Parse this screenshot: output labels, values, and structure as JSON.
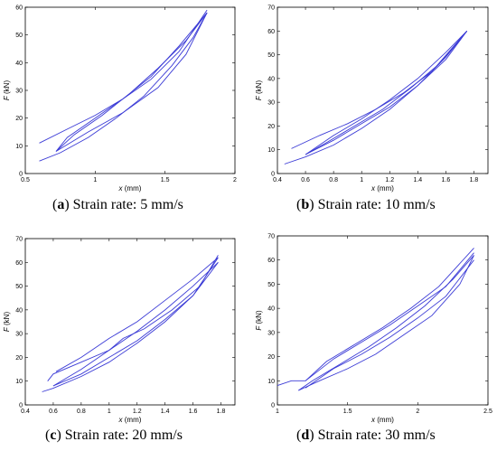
{
  "captions": [
    {
      "letter": "a",
      "text": "Strain rate: 5 mm/s"
    },
    {
      "letter": "b",
      "text": "Strain rate: 10 mm/s"
    },
    {
      "letter": "c",
      "text": "Strain rate: 20 mm/s"
    },
    {
      "letter": "d",
      "text": "Strain rate: 30 mm/s"
    }
  ],
  "axis_text": {
    "xlabel_var": "x",
    "xlabel_unit": " (mm)",
    "ylabel_var": "F",
    "ylabel_unit": " (kN)"
  },
  "colors": {
    "curve": "#3b3bd6"
  },
  "chart_data": [
    {
      "type": "line",
      "xlabel": "x (mm)",
      "ylabel": "F (kN)",
      "xlim": [
        0.5,
        2
      ],
      "ylim": [
        0,
        60
      ],
      "xticks": [
        "0.5",
        "1",
        "1.5",
        "2"
      ],
      "yticks": [
        "0",
        "10",
        "20",
        "30",
        "40",
        "50",
        "60"
      ],
      "grid": false,
      "series": [
        {
          "x": [
            0.6,
            0.75,
            0.95,
            1.15,
            1.35,
            1.55,
            1.7,
            1.8
          ],
          "y": [
            4.5,
            7.5,
            13,
            20,
            28,
            39,
            49,
            58
          ]
        },
        {
          "x": [
            1.8,
            1.65,
            1.45,
            1.25,
            1.05,
            0.85,
            0.72
          ],
          "y": [
            58,
            48,
            38,
            29,
            21,
            14,
            8
          ]
        },
        {
          "x": [
            0.72,
            0.95,
            1.2,
            1.45,
            1.65,
            1.8
          ],
          "y": [
            8,
            15,
            22,
            31,
            43,
            58
          ]
        },
        {
          "x": [
            1.8,
            1.6,
            1.4,
            1.2,
            1.0,
            0.8,
            0.72
          ],
          "y": [
            58,
            46,
            35,
            27,
            20,
            13,
            8
          ]
        },
        {
          "x": [
            0.6,
            0.8,
            1.0,
            1.2,
            1.4,
            1.6,
            1.8
          ],
          "y": [
            11,
            16,
            21,
            27,
            34,
            44,
            59
          ]
        }
      ]
    },
    {
      "type": "line",
      "xlabel": "x (mm)",
      "ylabel": "F (kN)",
      "xlim": [
        0.4,
        1.9
      ],
      "ylim": [
        0,
        70
      ],
      "xticks": [
        "0.4",
        "0.6",
        "0.8",
        "1",
        "1.2",
        "1.4",
        "1.6",
        "1.8"
      ],
      "yticks": [
        "0",
        "10",
        "20",
        "30",
        "40",
        "50",
        "60",
        "70"
      ],
      "grid": false,
      "series": [
        {
          "x": [
            0.45,
            0.6,
            0.8,
            1.0,
            1.2,
            1.4,
            1.6,
            1.75
          ],
          "y": [
            4,
            7,
            12,
            19,
            27,
            37,
            49,
            60
          ]
        },
        {
          "x": [
            1.75,
            1.6,
            1.4,
            1.2,
            1.0,
            0.8,
            0.6
          ],
          "y": [
            60,
            51,
            40,
            31,
            23,
            16,
            8
          ]
        },
        {
          "x": [
            0.6,
            0.8,
            1.0,
            1.2,
            1.4,
            1.6,
            1.75
          ],
          "y": [
            8,
            14,
            21,
            28,
            37,
            48,
            60
          ]
        },
        {
          "x": [
            1.75,
            1.55,
            1.35,
            1.15,
            0.95,
            0.75,
            0.6
          ],
          "y": [
            60,
            46,
            36,
            27,
            20,
            13,
            8
          ]
        },
        {
          "x": [
            0.5,
            0.7,
            0.9,
            1.1,
            1.3,
            1.5,
            1.75
          ],
          "y": [
            10.5,
            16,
            21,
            27,
            34,
            43,
            60
          ]
        }
      ]
    },
    {
      "type": "line",
      "xlabel": "x (mm)",
      "ylabel": "F (kN)",
      "xlim": [
        0.4,
        1.9
      ],
      "ylim": [
        0,
        70
      ],
      "xticks": [
        "0.4",
        "0.6",
        "0.8",
        "1",
        "1.2",
        "1.4",
        "1.6",
        "1.8"
      ],
      "yticks": [
        "0",
        "10",
        "20",
        "30",
        "40",
        "50",
        "60",
        "70"
      ],
      "grid": false,
      "series": [
        {
          "x": [
            0.52,
            0.6,
            0.8,
            1.0,
            1.2,
            1.4,
            1.6,
            1.78
          ],
          "y": [
            5.5,
            7,
            12,
            18,
            26,
            35,
            46,
            60
          ]
        },
        {
          "x": [
            1.78,
            1.6,
            1.4,
            1.2,
            1.0,
            0.8,
            0.6
          ],
          "y": [
            60,
            50,
            40,
            31,
            23,
            15,
            8
          ]
        },
        {
          "x": [
            0.6,
            0.8,
            1.0,
            1.2,
            1.4,
            1.6,
            1.78
          ],
          "y": [
            8,
            13,
            20,
            27,
            36,
            46,
            62
          ]
        },
        {
          "x": [
            1.78,
            1.6,
            1.4,
            1.2,
            1.0,
            0.8,
            0.62
          ],
          "y": [
            62,
            53,
            44,
            35,
            28,
            20,
            14
          ]
        },
        {
          "x": [
            0.56,
            0.6,
            0.8,
            1.0,
            1.1,
            1.25,
            1.45,
            1.65,
            1.78
          ],
          "y": [
            10,
            13,
            18,
            23,
            28,
            32,
            40,
            50,
            63
          ]
        }
      ]
    },
    {
      "type": "line",
      "xlabel": "x (mm)",
      "ylabel": "F (kN)",
      "xlim": [
        1,
        2.5
      ],
      "ylim": [
        0,
        70
      ],
      "xticks": [
        "1",
        "1.5",
        "2",
        "2.5"
      ],
      "yticks": [
        "0",
        "10",
        "20",
        "30",
        "40",
        "50",
        "60",
        "70"
      ],
      "grid": false,
      "series": [
        {
          "x": [
            1.0,
            1.1,
            1.2,
            1.35,
            1.55,
            1.75,
            1.95,
            2.15,
            2.4
          ],
          "y": [
            8,
            10,
            10,
            18,
            25,
            32,
            40,
            49,
            65
          ]
        },
        {
          "x": [
            1.15,
            1.3,
            1.5,
            1.7,
            1.9,
            2.1,
            2.3,
            2.4
          ],
          "y": [
            6,
            10,
            15,
            21,
            29,
            37,
            50,
            62
          ]
        },
        {
          "x": [
            2.4,
            2.25,
            2.05,
            1.85,
            1.65,
            1.45,
            1.25,
            1.15
          ],
          "y": [
            62,
            52,
            41,
            32,
            24,
            17,
            10,
            6
          ]
        },
        {
          "x": [
            1.2,
            1.4,
            1.6,
            1.8,
            2.0,
            2.2,
            2.4
          ],
          "y": [
            10,
            19,
            26,
            33,
            41,
            49,
            63
          ]
        },
        {
          "x": [
            2.4,
            2.2,
            2.0,
            1.8,
            1.6,
            1.4,
            1.2
          ],
          "y": [
            60,
            45,
            36,
            28,
            21,
            15,
            7
          ]
        }
      ]
    }
  ]
}
